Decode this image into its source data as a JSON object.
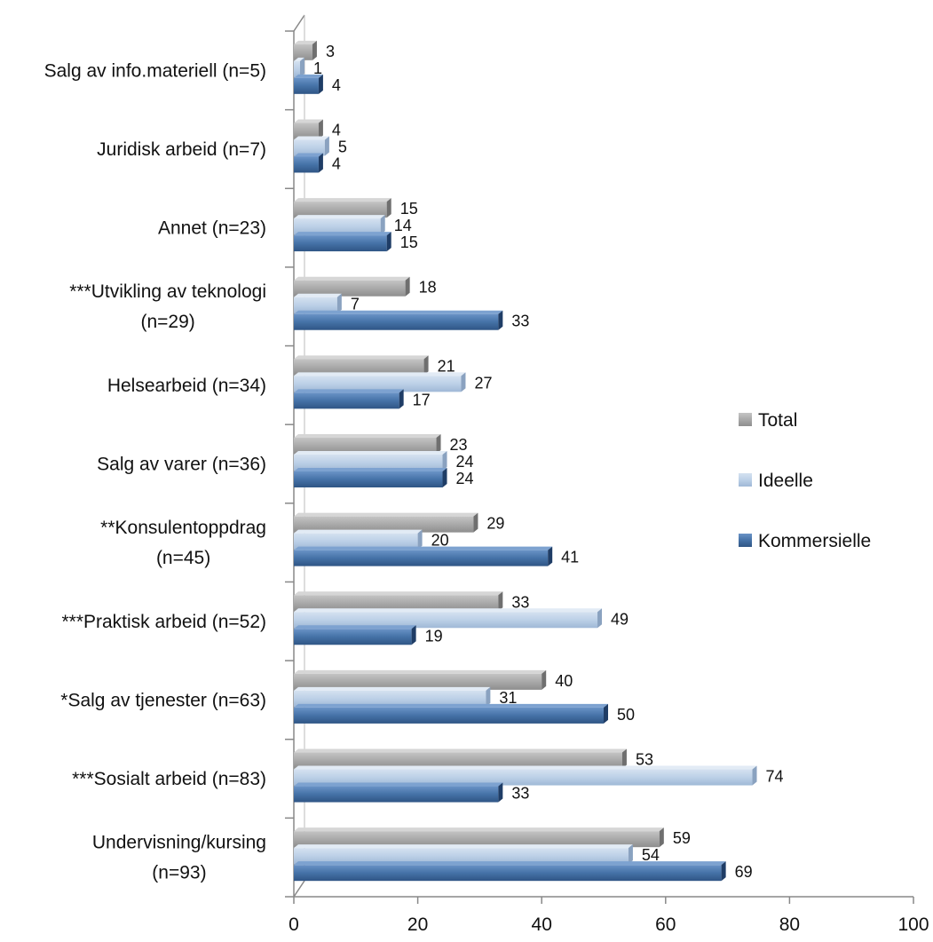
{
  "chart_data": {
    "type": "bar",
    "orientation": "horizontal",
    "style": "3d-clustered",
    "categories": [
      [
        "Salg av info.materiell (n=5)"
      ],
      [
        "Juridisk arbeid (n=7)"
      ],
      [
        "Annet (n=23)"
      ],
      [
        "***Utvikling av teknologi",
        "(n=29)"
      ],
      [
        "Helsearbeid (n=34)"
      ],
      [
        "Salg av varer (n=36)"
      ],
      [
        "**Konsulentoppdrag",
        "(n=45)"
      ],
      [
        "***Praktisk arbeid (n=52)"
      ],
      [
        "*Salg av tjenester (n=63)"
      ],
      [
        "***Sosialt arbeid (n=83)"
      ],
      [
        "Undervisning/kursing",
        "(n=93)"
      ]
    ],
    "series": [
      {
        "name": "Total",
        "color": "#a6a6a6",
        "values": [
          3,
          4,
          15,
          18,
          21,
          23,
          29,
          33,
          40,
          53,
          59
        ]
      },
      {
        "name": "Ideelle",
        "color": "#b9cde5",
        "values": [
          1,
          5,
          14,
          7,
          27,
          24,
          20,
          49,
          31,
          74,
          54
        ]
      },
      {
        "name": "Kommersielle",
        "color": "#4572a7",
        "values": [
          4,
          4,
          15,
          33,
          17,
          24,
          41,
          19,
          50,
          33,
          69
        ]
      }
    ],
    "xlim": [
      0,
      100
    ],
    "xticks": [
      "0",
      "20",
      "40",
      "60",
      "80",
      "100"
    ],
    "title": "",
    "xlabel": "",
    "ylabel": "",
    "legend_position": "right",
    "grid": false
  }
}
